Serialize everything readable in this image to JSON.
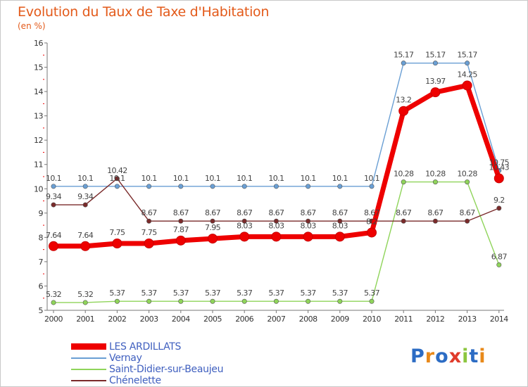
{
  "header": {
    "title": "Evolution du Taux de Taxe d'Habitation",
    "unit": "(en %)"
  },
  "logo": {
    "text": "Proxiti"
  },
  "chart_data": {
    "type": "line",
    "title": "Evolution du Taux de Taxe d'Habitation",
    "ylabel": "(en %)",
    "xlabel": "",
    "x": [
      "2000",
      "2001",
      "2002",
      "2003",
      "2004",
      "2005",
      "2006",
      "2007",
      "2008",
      "2009",
      "2010",
      "2011",
      "2012",
      "2013",
      "2014"
    ],
    "ylim": [
      5,
      16
    ],
    "yticks": [
      "5",
      "6",
      "7",
      "8",
      "9",
      "10",
      "11",
      "12",
      "13",
      "14",
      "15",
      "16"
    ],
    "grid": false,
    "legend_position": "bottom-left",
    "series": [
      {
        "name": "LES ARDILLATS",
        "color": "#ee0000",
        "values": [
          7.64,
          7.64,
          7.75,
          7.75,
          7.87,
          7.95,
          8.03,
          8.03,
          8.03,
          8.03,
          8.2,
          13.2,
          13.97,
          14.25,
          10.43
        ],
        "labels": [
          "7.64",
          "7.64",
          "7.75",
          "7.75",
          "7.87",
          "7.95",
          "8.03",
          "8.03",
          "8.03",
          "8.03",
          "8.2",
          "13.2",
          "13.97",
          "14.25",
          "10.43"
        ]
      },
      {
        "name": "Vernay",
        "color": "#6a9fd4",
        "values": [
          10.1,
          10.1,
          10.1,
          10.1,
          10.1,
          10.1,
          10.1,
          10.1,
          10.1,
          10.1,
          10.1,
          15.17,
          15.17,
          15.17,
          10.75
        ],
        "labels": [
          "10.1",
          "10.1",
          "10.1",
          "10.1",
          "10.1",
          "10.1",
          "10.1",
          "10.1",
          "10.1",
          "10.1",
          "10.1",
          "15.17",
          "15.17",
          "15.17",
          "10.75"
        ]
      },
      {
        "name": "Saint-Didier-sur-Beaujeu",
        "color": "#8fd45a",
        "values": [
          5.32,
          5.32,
          5.37,
          5.37,
          5.37,
          5.37,
          5.37,
          5.37,
          5.37,
          5.37,
          5.37,
          10.28,
          10.28,
          10.28,
          6.87
        ],
        "labels": [
          "5.32",
          "5.32",
          "5.37",
          "5.37",
          "5.37",
          "5.37",
          "5.37",
          "5.37",
          "5.37",
          "5.37",
          "5.37",
          "10.28",
          "10.28",
          "10.28",
          "6.87"
        ]
      },
      {
        "name": "Chénelette",
        "color": "#7a2a2a",
        "values": [
          9.34,
          9.34,
          10.42,
          8.67,
          8.67,
          8.67,
          8.67,
          8.67,
          8.67,
          8.67,
          8.67,
          8.67,
          8.67,
          8.67,
          9.2
        ],
        "labels": [
          "9.34",
          "9.34",
          "10.42",
          "8.67",
          "8.67",
          "8.67",
          "8.67",
          "8.67",
          "8.67",
          "8.67",
          "8.67",
          "8.67",
          "8.67",
          "8.67",
          "9.2"
        ]
      }
    ]
  }
}
